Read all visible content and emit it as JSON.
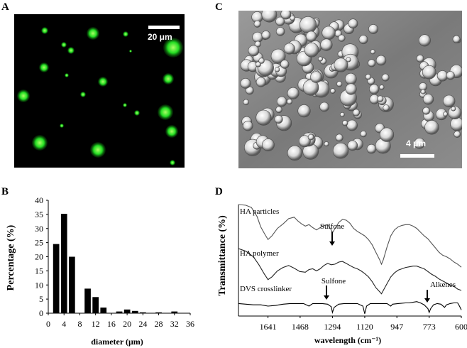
{
  "panels": {
    "a": {
      "letter": "A",
      "scale_label": "20 μm"
    },
    "b": {
      "letter": "B"
    },
    "c": {
      "letter": "C",
      "scale_label": "4 μm"
    },
    "d": {
      "letter": "D"
    }
  },
  "chart_data": [
    {
      "type": "bar",
      "panel": "B",
      "xlabel": "diameter (μm)",
      "ylabel": "Percentage (%)",
      "xlim": [
        0,
        36
      ],
      "ylim": [
        0,
        40
      ],
      "x_ticks": [
        0,
        4,
        8,
        12,
        16,
        20,
        24,
        28,
        32,
        36
      ],
      "y_ticks": [
        0,
        5,
        10,
        15,
        20,
        25,
        30,
        35,
        40
      ],
      "bars": [
        {
          "x": 2,
          "value": 24.5
        },
        {
          "x": 4,
          "value": 35.2
        },
        {
          "x": 6,
          "value": 20.0
        },
        {
          "x": 10,
          "value": 8.7
        },
        {
          "x": 12,
          "value": 5.7
        },
        {
          "x": 14,
          "value": 2.0
        },
        {
          "x": 18,
          "value": 0.6
        },
        {
          "x": 20,
          "value": 1.3
        },
        {
          "x": 22,
          "value": 0.8
        },
        {
          "x": 24,
          "value": 0.3
        },
        {
          "x": 28,
          "value": 0.3
        },
        {
          "x": 32,
          "value": 0.6
        }
      ]
    },
    {
      "type": "line",
      "panel": "D",
      "xlabel": "wavelength (cm⁻¹)",
      "ylabel": "Transmittance (%)",
      "xlim": [
        1800,
        600
      ],
      "x_ticks": [
        1641,
        1468,
        1294,
        1120,
        947,
        773,
        600
      ],
      "series": [
        {
          "name": "HA particles",
          "points": [
            [
              1800,
              0.94
            ],
            [
              1760,
              0.93
            ],
            [
              1730,
              0.9
            ],
            [
              1700,
              0.78
            ],
            [
              1680,
              0.64
            ],
            [
              1660,
              0.55
            ],
            [
              1641,
              0.47
            ],
            [
              1620,
              0.52
            ],
            [
              1590,
              0.62
            ],
            [
              1560,
              0.68
            ],
            [
              1530,
              0.75
            ],
            [
              1500,
              0.77
            ],
            [
              1480,
              0.72
            ],
            [
              1460,
              0.68
            ],
            [
              1440,
              0.65
            ],
            [
              1420,
              0.67
            ],
            [
              1400,
              0.63
            ],
            [
              1380,
              0.6
            ],
            [
              1360,
              0.63
            ],
            [
              1340,
              0.66
            ],
            [
              1320,
              0.67
            ],
            [
              1300,
              0.6
            ],
            [
              1294,
              0.56
            ],
            [
              1280,
              0.62
            ],
            [
              1260,
              0.7
            ],
            [
              1240,
              0.74
            ],
            [
              1220,
              0.73
            ],
            [
              1200,
              0.69
            ],
            [
              1180,
              0.62
            ],
            [
              1160,
              0.58
            ],
            [
              1140,
              0.55
            ],
            [
              1120,
              0.52
            ],
            [
              1100,
              0.47
            ],
            [
              1080,
              0.4
            ],
            [
              1060,
              0.3
            ],
            [
              1040,
              0.2
            ],
            [
              1030,
              0.14
            ],
            [
              1020,
              0.2
            ],
            [
              1000,
              0.37
            ],
            [
              980,
              0.52
            ],
            [
              960,
              0.6
            ],
            [
              940,
              0.64
            ],
            [
              920,
              0.66
            ],
            [
              900,
              0.67
            ],
            [
              880,
              0.67
            ],
            [
              860,
              0.65
            ],
            [
              840,
              0.62
            ],
            [
              820,
              0.57
            ],
            [
              800,
              0.52
            ],
            [
              780,
              0.48
            ],
            [
              760,
              0.42
            ],
            [
              740,
              0.36
            ],
            [
              720,
              0.3
            ],
            [
              700,
              0.26
            ],
            [
              680,
              0.24
            ],
            [
              660,
              0.21
            ],
            [
              640,
              0.17
            ],
            [
              620,
              0.14
            ],
            [
              600,
              0.1
            ]
          ]
        },
        {
          "name": "HA polymer",
          "points": [
            [
              1800,
              0.8
            ],
            [
              1760,
              0.76
            ],
            [
              1720,
              0.68
            ],
            [
              1690,
              0.56
            ],
            [
              1660,
              0.42
            ],
            [
              1641,
              0.34
            ],
            [
              1620,
              0.38
            ],
            [
              1590,
              0.47
            ],
            [
              1560,
              0.52
            ],
            [
              1530,
              0.55
            ],
            [
              1500,
              0.51
            ],
            [
              1470,
              0.46
            ],
            [
              1440,
              0.45
            ],
            [
              1420,
              0.49
            ],
            [
              1400,
              0.5
            ],
            [
              1380,
              0.47
            ],
            [
              1360,
              0.5
            ],
            [
              1340,
              0.55
            ],
            [
              1320,
              0.58
            ],
            [
              1300,
              0.56
            ],
            [
              1280,
              0.57
            ],
            [
              1260,
              0.6
            ],
            [
              1240,
              0.61
            ],
            [
              1220,
              0.58
            ],
            [
              1200,
              0.55
            ],
            [
              1180,
              0.52
            ],
            [
              1160,
              0.5
            ],
            [
              1140,
              0.47
            ],
            [
              1120,
              0.43
            ],
            [
              1100,
              0.38
            ],
            [
              1080,
              0.31
            ],
            [
              1060,
              0.22
            ],
            [
              1040,
              0.16
            ],
            [
              1030,
              0.13
            ],
            [
              1020,
              0.18
            ],
            [
              1000,
              0.28
            ],
            [
              980,
              0.38
            ],
            [
              960,
              0.44
            ],
            [
              940,
              0.48
            ],
            [
              920,
              0.5
            ],
            [
              900,
              0.52
            ],
            [
              880,
              0.53
            ],
            [
              860,
              0.54
            ],
            [
              840,
              0.54
            ],
            [
              820,
              0.52
            ],
            [
              800,
              0.5
            ],
            [
              780,
              0.46
            ],
            [
              760,
              0.42
            ],
            [
              740,
              0.39
            ],
            [
              720,
              0.35
            ],
            [
              700,
              0.32
            ],
            [
              680,
              0.29
            ],
            [
              660,
              0.26
            ],
            [
              640,
              0.24
            ],
            [
              620,
              0.2
            ],
            [
              600,
              0.18
            ]
          ]
        },
        {
          "name": "DVS crosslinker",
          "points": [
            [
              1800,
              0.14
            ],
            [
              1760,
              0.13
            ],
            [
              1720,
              0.12
            ],
            [
              1680,
              0.12
            ],
            [
              1641,
              0.1
            ],
            [
              1600,
              0.11
            ],
            [
              1560,
              0.13
            ],
            [
              1520,
              0.14
            ],
            [
              1480,
              0.14
            ],
            [
              1450,
              0.14
            ],
            [
              1420,
              0.1
            ],
            [
              1400,
              0.14
            ],
            [
              1380,
              0.14
            ],
            [
              1350,
              0.14
            ],
            [
              1320,
              0.13
            ],
            [
              1300,
              0.09
            ],
            [
              1294,
              0.0
            ],
            [
              1285,
              0.08
            ],
            [
              1260,
              0.13
            ],
            [
              1230,
              0.14
            ],
            [
              1200,
              0.14
            ],
            [
              1160,
              0.14
            ],
            [
              1130,
              0.1
            ],
            [
              1120,
              -0.02
            ],
            [
              1110,
              0.1
            ],
            [
              1090,
              0.14
            ],
            [
              1050,
              0.14
            ],
            [
              1000,
              0.14
            ],
            [
              980,
              0.1
            ],
            [
              970,
              0.13
            ],
            [
              940,
              0.14
            ],
            [
              900,
              0.15
            ],
            [
              880,
              0.15
            ],
            [
              860,
              0.16
            ],
            [
              840,
              0.17
            ],
            [
              820,
              0.15
            ],
            [
              800,
              0.12
            ],
            [
              780,
              0.06
            ],
            [
              773,
              0.0
            ],
            [
              765,
              0.06
            ],
            [
              750,
              0.12
            ],
            [
              730,
              0.14
            ],
            [
              710,
              0.13
            ],
            [
              690,
              0.08
            ],
            [
              680,
              0.12
            ],
            [
              660,
              0.14
            ],
            [
              640,
              0.15
            ],
            [
              620,
              0.15
            ],
            [
              610,
              0.1
            ],
            [
              600,
              0.04
            ]
          ]
        }
      ],
      "annotations": [
        {
          "text": "Sulfone",
          "x": 1294,
          "series": "HA particles"
        },
        {
          "text": "Sulfone",
          "x": 1294,
          "series": "DVS crosslinker"
        },
        {
          "text": "Alkenes",
          "x": 773,
          "series": "DVS crosslinker"
        }
      ]
    }
  ]
}
